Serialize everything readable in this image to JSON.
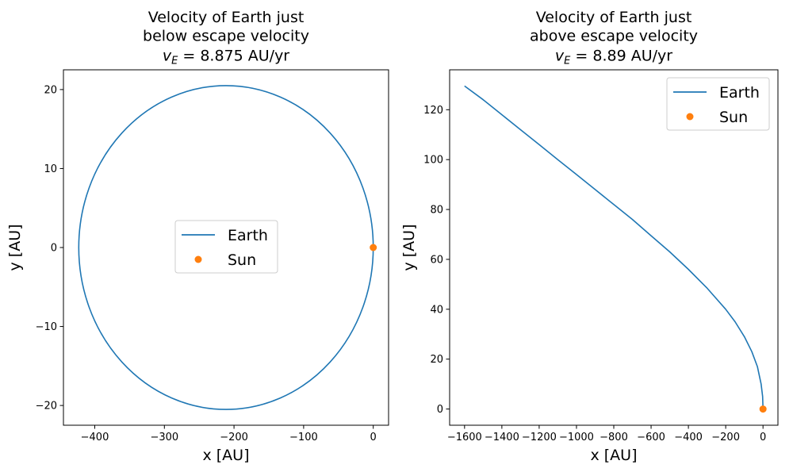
{
  "chart_data": [
    {
      "type": "line",
      "title_lines": [
        "Velocity of Earth just",
        "below escape velocity"
      ],
      "title_math": {
        "var": "v",
        "sub": "E",
        "rest": " = 8.875 AU/yr"
      },
      "xlabel": "x [AU]",
      "ylabel": "y [AU]",
      "xlim": [
        -445,
        22
      ],
      "ylim": [
        -22.5,
        22.5
      ],
      "xticks": [
        -400,
        -300,
        -200,
        -100,
        0
      ],
      "xtick_labels": [
        "−400",
        "−300",
        "−200",
        "−100",
        "0"
      ],
      "yticks": [
        -20,
        -10,
        0,
        10,
        20
      ],
      "ytick_labels": [
        "−20",
        "−10",
        "0",
        "10",
        "20"
      ],
      "legend_position": "center",
      "series": [
        {
          "name": "Earth",
          "kind": "ellipse",
          "color": "#1f77b4",
          "center": [
            -211.5,
            0
          ],
          "semi_x": 211.5,
          "semi_y": 20.5
        },
        {
          "name": "Sun",
          "kind": "point",
          "color": "#ff7f0e",
          "x": [
            0
          ],
          "y": [
            0
          ]
        }
      ]
    },
    {
      "type": "line",
      "title_lines": [
        "Velocity of Earth just",
        "above escape velocity"
      ],
      "title_math": {
        "var": "v",
        "sub": "E",
        "rest": " = 8.89 AU/yr"
      },
      "xlabel": "x [AU]",
      "ylabel": "y [AU]",
      "xlim": [
        -1680,
        80
      ],
      "ylim": [
        -6.5,
        136
      ],
      "xticks": [
        -1600,
        -1400,
        -1200,
        -1000,
        -800,
        -600,
        -400,
        -200,
        0
      ],
      "xtick_labels": [
        "−1600",
        "−1400",
        "−1200",
        "−1000",
        "−800",
        "−600",
        "−400",
        "−200",
        "0"
      ],
      "yticks": [
        0,
        20,
        40,
        60,
        80,
        100,
        120
      ],
      "ytick_labels": [
        "0",
        "20",
        "40",
        "60",
        "80",
        "100",
        "120"
      ],
      "legend_position": "top-right",
      "series": [
        {
          "name": "Earth",
          "kind": "line",
          "color": "#1f77b4",
          "x": [
            0,
            -2,
            -10,
            -30,
            -60,
            -100,
            -150,
            -200,
            -300,
            -400,
            -500,
            -600,
            -700,
            -800,
            -900,
            -1000,
            -1100,
            -1200,
            -1300,
            -1400,
            -1500,
            -1600
          ],
          "y": [
            0,
            5,
            10,
            17,
            23,
            29,
            35,
            40,
            48.5,
            56,
            63,
            69.5,
            76,
            82,
            88,
            94,
            100,
            106,
            112,
            118,
            124,
            129.5
          ]
        },
        {
          "name": "Sun",
          "kind": "point",
          "color": "#ff7f0e",
          "x": [
            0
          ],
          "y": [
            0
          ]
        }
      ]
    }
  ]
}
